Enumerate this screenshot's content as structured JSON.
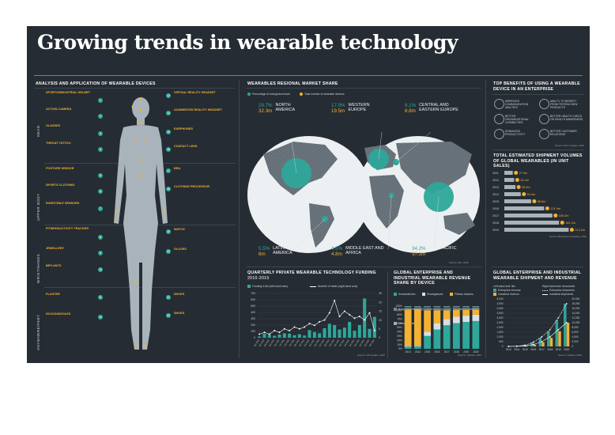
{
  "title": "Growing trends in wearable technology",
  "colors": {
    "teal": "#2ea79a",
    "amber": "#f2b233",
    "background": "#262c33",
    "accent_line": "#2a9eb0"
  },
  "sections": {
    "analysis": "ANALYSIS AND APPLICATION OF WEARABLE DEVICES",
    "regional": "WEARABLES REGIONAL MARKET SHARE",
    "benefits": "TOP BENEFITS OF USING A WEARABLE DEVICE IN AN ENTERPRISE",
    "shipments": "TOTAL ESTIMATED SHIPMENT VOLUMES OF GLOBAL WEARABLES (IN UNIT SALES)",
    "funding": "QUARTERLY PRIVATE WEARABLE TECHNOLOGY FUNDING",
    "funding_sub": "2010-2015",
    "revenue_share": "GLOBAL ENTERPRISE AND INDUSTRIAL WEARABLE REVENUE SHARE BY DEVICE",
    "ship_rev": "GLOBAL ENTERPRISE AND INDUSTRIAL WEARABLE SHIPMENT AND REVENUE"
  },
  "body_labels": [
    "HEAD",
    "UPPER BODY",
    "WRIST/HANDS",
    "ANYWHERE/FEET"
  ],
  "features_left": [
    {
      "n": "1",
      "title": "SPORTS/INDUSTRIAL HELMET"
    },
    {
      "n": "2",
      "title": "ACTION CAMERA"
    },
    {
      "n": "3",
      "title": "GLASSES"
    },
    {
      "n": "4",
      "title": "THROAT TATTOO"
    },
    {
      "n": "5",
      "title": "POSTURE SENSOR"
    },
    {
      "n": "6",
      "title": "SPORTS CLOTHING"
    },
    {
      "n": "7",
      "title": "INGESTIBLE SENSORS"
    },
    {
      "n": "8",
      "title": "FITNESS/ACTIVITY TRACKER"
    },
    {
      "n": "9",
      "title": "JEWELLERY"
    },
    {
      "n": "10",
      "title": "IMPLANTS"
    },
    {
      "n": "11",
      "title": "PLASTER"
    },
    {
      "n": "12",
      "title": "SOCKS/INSOLES"
    }
  ],
  "features_right": [
    {
      "n": "13",
      "title": "VIRTUAL REALITY HEADSET"
    },
    {
      "n": "14",
      "title": "AUGMENTED REALITY HEADSET"
    },
    {
      "n": "15",
      "title": "EARPHONES"
    },
    {
      "n": "16",
      "title": "CONTACT LENS"
    },
    {
      "n": "17",
      "title": "BRA"
    },
    {
      "n": "18",
      "title": "CLOTHING PROCESSOR"
    },
    {
      "n": "19",
      "title": "WATCH"
    },
    {
      "n": "20",
      "title": "GLOVES"
    },
    {
      "n": "21",
      "title": "SHOES"
    },
    {
      "n": "22",
      "title": "SHOES"
    }
  ],
  "regional": {
    "legend": [
      "Percentage of total global share",
      "Total number of wearable devices"
    ],
    "regions": [
      {
        "name": "NORTH AMERICA",
        "pct": "29.7%",
        "devices": "32.3m"
      },
      {
        "name": "WESTERN EUROPE",
        "pct": "17.9%",
        "devices": "19.5m"
      },
      {
        "name": "CENTRAL AND EASTERN EUROPE",
        "pct": "8.1%",
        "devices": "8.8m"
      },
      {
        "name": "LATIN AMERICA",
        "pct": "5.5%",
        "devices": "6m"
      },
      {
        "name": "MIDDLE EAST AND AFRICA",
        "pct": "4.5%",
        "devices": "4.8m"
      },
      {
        "name": "ASIA-PACIFIC",
        "pct": "34.2%",
        "devices": "37.2m"
      }
    ],
    "source": "Source: IDC, 2015"
  },
  "benefits": [
    "IMPROVES COMMUNICATION ABILITIES",
    "ABILITY TO BENEFIT FROM TESTING NEW PRODUCTS",
    "BETTER ORGANISATIONAL CAPABILITIES",
    "BETTER HEALTH CHECK OR HEALTH AWARENESS",
    "ENHANCED PRODUCTIVITY",
    "BETTER CUSTOMER RELATIONS"
  ],
  "benefits_source": "Source: PwC Insights, 2015",
  "shipments": {
    "years": [
      "2011",
      "2012",
      "2013",
      "2014",
      "2015",
      "2016",
      "2017",
      "2018",
      "2019"
    ],
    "labels": [
      "27.9m",
      "32.4m",
      "36.9m",
      "54.4m",
      "88.8m",
      "131.9m",
      "159.2m",
      "181.3m",
      "213.2m"
    ],
    "values": [
      27.9,
      32.4,
      36.9,
      54.4,
      88.8,
      131.9,
      159.2,
      181.3,
      213.2
    ],
    "source": "Source: Business Consulting, 2016"
  },
  "funding": {
    "legend": [
      "Funding in $m (left-hand axis)",
      "Number of deals (right-hand axis)"
    ],
    "source": "Source: CB Insights, 2016"
  },
  "revenue_share": {
    "legend": [
      "Smartwatches",
      "Smartglasses",
      "Fitness trackers",
      "Body sensors",
      "Smart clothing",
      "Wearable cameras",
      "Other wearables"
    ],
    "source": "Source: Tractica, 2016"
  },
  "ship_rev": {
    "legend_left_title": "Left-hand axis: $m",
    "legend_right_title": "Right-hand axis: thousands",
    "legend": [
      "Enterprise revenue",
      "Industrial revenue",
      "Enterprise shipments",
      "Industrial shipments"
    ],
    "source": "Source: Tractica, 2016"
  },
  "chart_data": [
    {
      "type": "bar",
      "title": "TOTAL ESTIMATED SHIPMENT VOLUMES OF GLOBAL WEARABLES (IN UNIT SALES)",
      "categories": [
        "2011",
        "2012",
        "2013",
        "2014",
        "2015",
        "2016",
        "2017",
        "2018",
        "2019"
      ],
      "values": [
        27.9,
        32.4,
        36.9,
        54.4,
        88.8,
        131.9,
        159.2,
        181.3,
        213.2
      ]
    },
    {
      "type": "bar",
      "title": "QUARTERLY PRIVATE WEARABLE TECHNOLOGY FUNDING",
      "subtitle": "2010-2015",
      "categories": [
        "Q1 2010",
        "Q2 2010",
        "Q3 2010",
        "Q4 2010",
        "Q1 2011",
        "Q2 2011",
        "Q3 2011",
        "Q4 2011",
        "Q1 2012",
        "Q2 2012",
        "Q3 2012",
        "Q4 2012",
        "Q1 2013",
        "Q2 2013",
        "Q3 2013",
        "Q4 2013",
        "Q1 2014",
        "Q2 2014",
        "Q3 2014",
        "Q4 2014",
        "Q1 2015",
        "Q2 2015",
        "Q3 2015",
        "Q4 2015"
      ],
      "series": [
        {
          "name": "Funding in $m (left-hand axis)",
          "values": [
            20,
            60,
            45,
            30,
            50,
            70,
            65,
            40,
            55,
            35,
            120,
            90,
            70,
            150,
            220,
            200,
            130,
            160,
            250,
            110,
            200,
            620,
            140,
            330
          ]
        },
        {
          "name": "Number of deals (right-hand axis)",
          "values": [
            2,
            3,
            2,
            4,
            3,
            5,
            4,
            6,
            5,
            6,
            8,
            7,
            9,
            10,
            14,
            21,
            12,
            15,
            13,
            11,
            12,
            10,
            14,
            4
          ]
        }
      ],
      "ylim": [
        0,
        700
      ],
      "y2lim": [
        0,
        25
      ],
      "yticks": [
        "0",
        "100",
        "200",
        "300",
        "400",
        "500",
        "600",
        "700"
      ],
      "y2ticks": [
        "0",
        "5",
        "10",
        "15",
        "20",
        "25"
      ]
    },
    {
      "type": "bar",
      "title": "GLOBAL ENTERPRISE AND INDUSTRIAL WEARABLE REVENUE SHARE BY DEVICE",
      "categories": [
        "2013",
        "2014",
        "2015",
        "2016",
        "2017",
        "2018",
        "2019",
        "2020"
      ],
      "series": [
        {
          "name": "Smartwatches",
          "values": [
            5,
            6,
            30,
            45,
            55,
            60,
            63,
            65
          ]
        },
        {
          "name": "Smartglasses",
          "values": [
            2,
            2,
            10,
            15,
            15,
            15,
            15,
            15
          ]
        },
        {
          "name": "Fitness trackers",
          "values": [
            85,
            85,
            50,
            30,
            20,
            16,
            13,
            12
          ]
        },
        {
          "name": "Body sensors",
          "values": [
            3,
            3,
            4,
            4,
            4,
            4,
            4,
            4
          ]
        },
        {
          "name": "Smart clothing",
          "values": [
            2,
            2,
            3,
            3,
            3,
            3,
            3,
            2
          ]
        },
        {
          "name": "Wearable cameras",
          "values": [
            2,
            1,
            2,
            2,
            2,
            1,
            1,
            1
          ]
        },
        {
          "name": "Other wearables",
          "values": [
            1,
            1,
            1,
            1,
            1,
            1,
            1,
            1
          ]
        }
      ],
      "ylim": [
        0,
        100
      ],
      "yticks": [
        "0%",
        "10%",
        "20%",
        "30%",
        "40%",
        "50%",
        "60%",
        "70%",
        "80%",
        "90%",
        "100%"
      ]
    },
    {
      "type": "line",
      "title": "GLOBAL ENTERPRISE AND INDUSTRIAL WEARABLE SHIPMENT AND REVENUE",
      "categories": [
        "2013",
        "2014",
        "2015",
        "2016",
        "2017",
        "2018",
        "2019",
        "2020"
      ],
      "series": [
        {
          "name": "Enterprise revenue",
          "values": [
            10,
            50,
            150,
            400,
            900,
            1600,
            2800,
            4500
          ]
        },
        {
          "name": "Industrial revenue",
          "values": [
            5,
            20,
            60,
            180,
            450,
            900,
            1600,
            2500
          ]
        },
        {
          "name": "Enterprise shipments",
          "values": [
            20,
            100,
            500,
            1800,
            4000,
            7000,
            12000,
            18000
          ]
        },
        {
          "name": "Industrial shipments",
          "values": [
            10,
            50,
            200,
            800,
            2000,
            4000,
            7000,
            10000
          ]
        }
      ],
      "ylim": [
        0,
        5000
      ],
      "y2lim": [
        0,
        20000
      ],
      "yticks": [
        "0",
        "500",
        "1,000",
        "1,500",
        "2,000",
        "2,500",
        "3,000",
        "3,500",
        "4,000",
        "4,500",
        "5,000"
      ],
      "y2ticks": [
        "0",
        "2,000",
        "4,000",
        "6,000",
        "8,000",
        "10,000",
        "12,000",
        "14,000",
        "16,000",
        "18,000",
        "20,000"
      ]
    }
  ]
}
